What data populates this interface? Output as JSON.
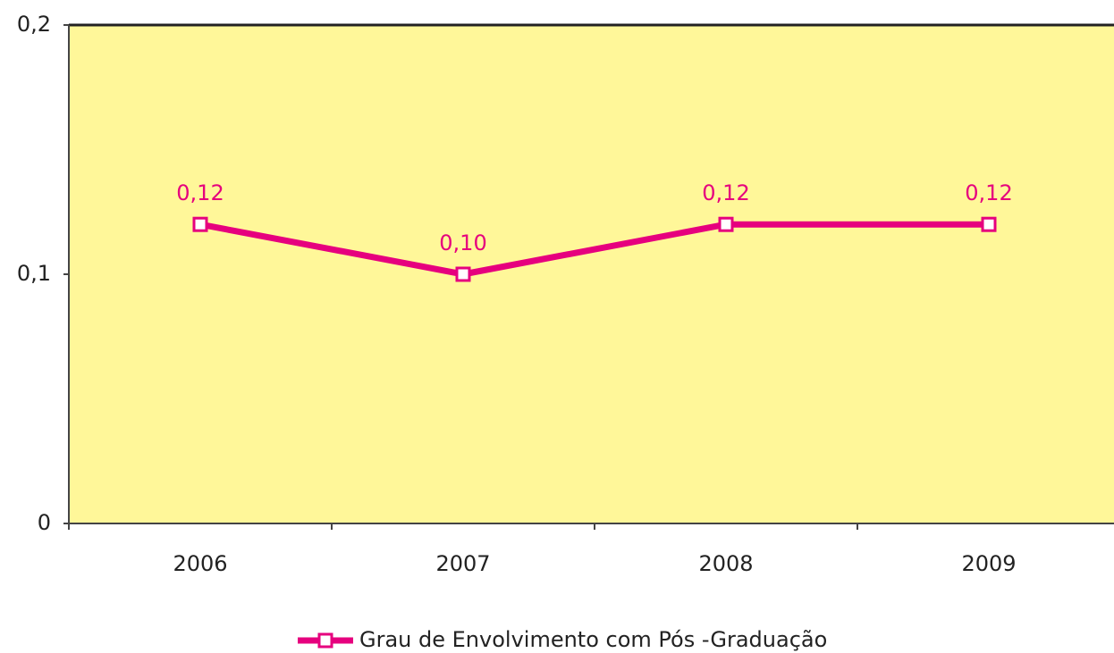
{
  "chart_data": {
    "type": "line",
    "categories": [
      "2006",
      "2007",
      "2008",
      "2009"
    ],
    "series": [
      {
        "name": "Grau de Envolvimento com Pós -Graduação",
        "color": "#e6007e",
        "values": [
          0.12,
          0.1,
          0.12,
          0.12
        ],
        "value_labels": [
          "0,12",
          "0,10",
          "0,12",
          "0,12"
        ]
      }
    ],
    "ylim": [
      0,
      0.2
    ],
    "yticks": [
      0,
      {
        "value": 0.1,
        "label": "0,1"
      },
      {
        "value": 0.2,
        "label": "0,2"
      }
    ],
    "plot_background": "#fff799",
    "legend": "bottom"
  }
}
